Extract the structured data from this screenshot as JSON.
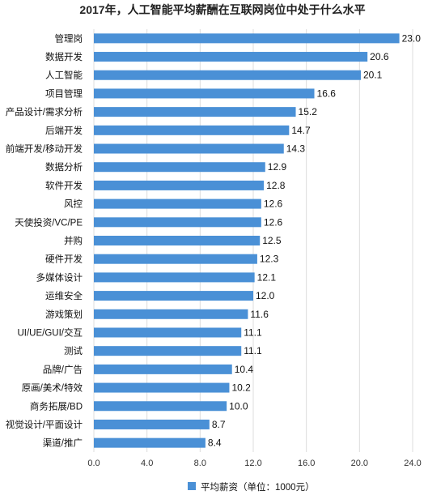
{
  "chart_data": {
    "type": "bar",
    "orientation": "horizontal",
    "title": "2017年，人工智能平均薪酬在互联网岗位中处于什么水平",
    "categories": [
      "管理岗",
      "数据开发",
      "人工智能",
      "项目管理",
      "产品设计/需求分析",
      "后端开发",
      "前端开发/移动开发",
      "数据分析",
      "软件开发",
      "风控",
      "天使投资/VC/PE",
      "并购",
      "硬件开发",
      "多媒体设计",
      "运维安全",
      "游戏策划",
      "UI/UE/GUI/交互",
      "测试",
      "品牌/广告",
      "原画/美术/特效",
      "商务拓展/BD",
      "视觉设计/平面设计",
      "渠道/推广"
    ],
    "series": [
      {
        "name": "平均薪资（单位：1000元）",
        "values": [
          23.0,
          20.6,
          20.1,
          16.6,
          15.2,
          14.7,
          14.3,
          12.9,
          12.8,
          12.6,
          12.6,
          12.5,
          12.3,
          12.1,
          12.0,
          11.6,
          11.1,
          11.1,
          10.4,
          10.2,
          10.0,
          8.7,
          8.4
        ],
        "labels": [
          "23.0",
          "20.6",
          "20.1",
          "16.6",
          "15.2",
          "14.7",
          "14.3",
          "12.9",
          "12.8",
          "12.6",
          "12.6",
          "12.5",
          "12.3",
          "12.1",
          "12.0",
          "11.6",
          "11.1",
          "11.1",
          "10.4",
          "10.2",
          "10.0",
          "8.7",
          "8.4"
        ]
      }
    ],
    "x_ticks": [
      "0.0",
      "4.0",
      "8.0",
      "12.0",
      "16.0",
      "20.0",
      "24.0"
    ],
    "xlim": [
      0,
      24
    ],
    "grid": true,
    "legend_position": "bottom",
    "color": "#4a90d6"
  }
}
